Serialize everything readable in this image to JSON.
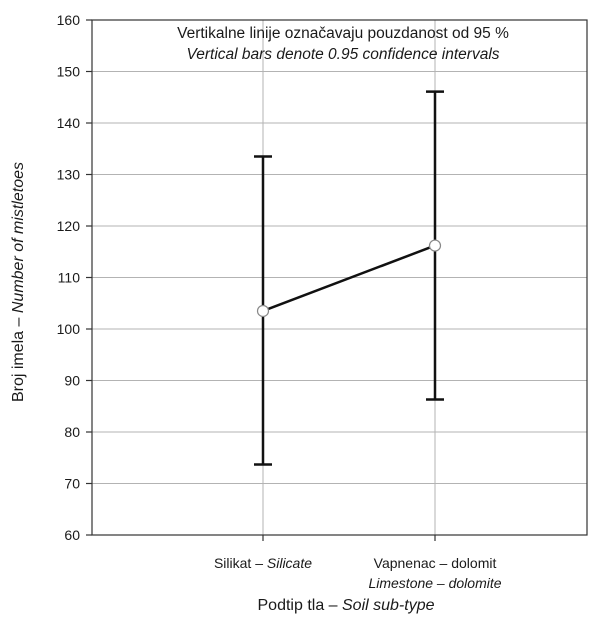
{
  "chart_data": {
    "type": "line",
    "annotation_line1": "Vertikalne linije označavaju pouzdanost od 95 %",
    "annotation_line2": "Vertical bars denote 0.95 confidence intervals",
    "xlabel_plain": "Podtip tla – ",
    "xlabel_italic": "Soil sub-type",
    "ylabel_plain": "Broj imela – ",
    "ylabel_italic": "Number of mistletoes",
    "ylim": [
      60,
      160
    ],
    "yticks": [
      60,
      70,
      80,
      90,
      100,
      110,
      120,
      130,
      140,
      150,
      160
    ],
    "grid": true,
    "categories": [
      {
        "plain": "Silikat – ",
        "italic": "Silicate",
        "line2": ""
      },
      {
        "plain": "Vapnenac – dolomit",
        "italic": "",
        "line2": "Limestone – dolomite"
      }
    ],
    "series": [
      {
        "values": [
          103.5,
          116.2
        ],
        "ci_lower": [
          73.7,
          86.3
        ],
        "ci_upper": [
          133.5,
          146.1
        ]
      }
    ],
    "colors": {
      "line": "#111111",
      "marker_fill": "#ffffff",
      "marker_stroke": "#888888",
      "grid": "#b3b3b3"
    }
  }
}
